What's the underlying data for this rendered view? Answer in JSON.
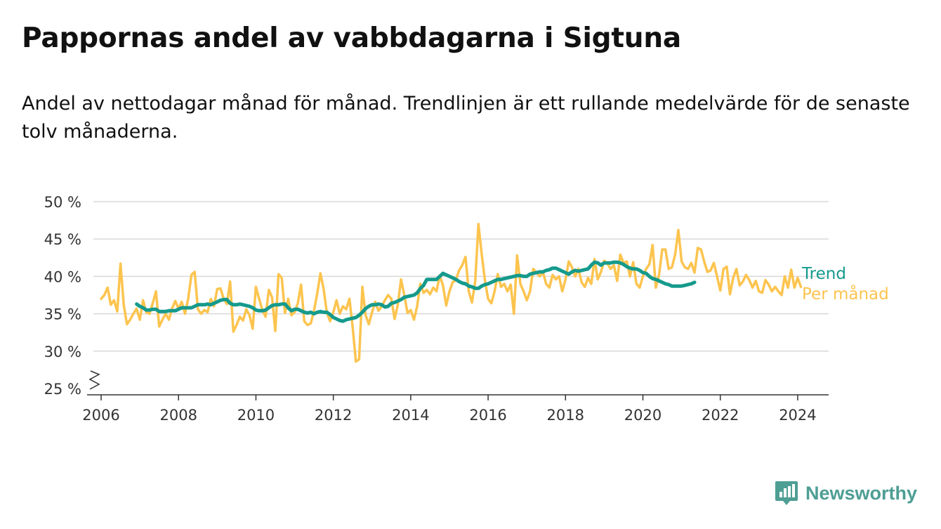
{
  "title": "Pappornas andel av vabbdagarna i Sigtuna",
  "subtitle": "Andel av nettodagar månad för månad. Trendlinjen är ett rullande medelvärde för de senaste tolv månaderna.",
  "brand": {
    "name": "Newsworthy",
    "icon": "newsworthy-logo-icon",
    "color": "#4e9e94"
  },
  "chart_data": {
    "type": "line",
    "title": "Pappornas andel av vabbdagarna i Sigtuna",
    "xlabel": "",
    "ylabel": "",
    "xlim": [
      2005.8,
      2024.8
    ],
    "ylim": [
      25,
      50
    ],
    "y_axis_break": true,
    "grid": "horizontal",
    "x_ticks": [
      2006,
      2008,
      2010,
      2012,
      2014,
      2016,
      2018,
      2020,
      2022,
      2024
    ],
    "x_tick_labels": [
      "2006",
      "2008",
      "2010",
      "2012",
      "2014",
      "2016",
      "2018",
      "2020",
      "2022",
      "2024"
    ],
    "y_ticks": [
      25,
      30,
      35,
      40,
      45,
      50
    ],
    "y_tick_labels": [
      "25 %",
      "30 %",
      "35 %",
      "40 %",
      "45 %",
      "50 %"
    ],
    "legend_placement": "right-end",
    "series": [
      {
        "name": "Per månad",
        "color": "#fcc44f",
        "start": 2006.0,
        "step": 0.0833333,
        "values": [
          37.0,
          37.5,
          38.5,
          36.2,
          36.8,
          35.3,
          41.7,
          36.2,
          33.6,
          34.2,
          35.0,
          35.7,
          34.2,
          36.8,
          35.2,
          35.0,
          36.4,
          38.0,
          33.3,
          34.2,
          35.0,
          34.2,
          35.7,
          36.7,
          35.7,
          36.6,
          35.0,
          37.0,
          40.2,
          40.6,
          35.6,
          35.0,
          35.5,
          35.2,
          37.0,
          36.0,
          38.3,
          38.4,
          37.0,
          36.3,
          39.3,
          32.6,
          33.5,
          34.6,
          34.1,
          35.6,
          34.8,
          33.0,
          38.6,
          37.0,
          35.5,
          34.6,
          38.2,
          37.2,
          32.7,
          40.3,
          39.8,
          35.1,
          37.0,
          34.8,
          35.2,
          36.4,
          38.9,
          34.0,
          33.5,
          33.7,
          35.4,
          37.7,
          40.4,
          38.3,
          35.1,
          34.0,
          35.2,
          36.8,
          35.0,
          36.0,
          35.6,
          37.0,
          33.2,
          28.6,
          28.9,
          38.6,
          34.8,
          33.6,
          35.2,
          36.6,
          35.4,
          36.0,
          36.8,
          37.5,
          37.0,
          34.3,
          36.2,
          39.6,
          37.5,
          35.1,
          35.5,
          34.2,
          36.0,
          39.0,
          37.8,
          38.2,
          37.6,
          38.5,
          38.0,
          40.1,
          38.8,
          36.1,
          38.0,
          39.2,
          39.5,
          40.8,
          41.5,
          42.6,
          38.0,
          36.5,
          39.3,
          47.0,
          43.0,
          39.5,
          37.0,
          36.4,
          38.0,
          40.3,
          38.6,
          39.0,
          38.0,
          38.9,
          35.0,
          42.8,
          39.0,
          38.0,
          36.8,
          38.0,
          41.0,
          40.5,
          40.0,
          40.6,
          39.0,
          38.5,
          40.2,
          39.6,
          40.0,
          38.0,
          39.6,
          42.0,
          41.2,
          40.0,
          41.0,
          39.2,
          38.6,
          39.8,
          39.0,
          42.3,
          39.6,
          40.6,
          42.1,
          41.7,
          41.0,
          41.5,
          39.4,
          42.9,
          41.8,
          42.0,
          40.0,
          41.9,
          39.0,
          38.5,
          40.0,
          41.0,
          41.6,
          44.2,
          38.5,
          40.2,
          43.6,
          43.6,
          41.0,
          41.2,
          42.9,
          46.2,
          42.0,
          41.2,
          41.0,
          41.8,
          40.5,
          43.8,
          43.6,
          42.0,
          40.6,
          40.8,
          41.8,
          40.0,
          38.1,
          41.0,
          41.3,
          37.6,
          39.8,
          41.0,
          38.8,
          39.3,
          40.2,
          39.5,
          38.5,
          39.4,
          38.0,
          37.8,
          39.5,
          38.9,
          38.0,
          38.6,
          38.0,
          37.5,
          40.0,
          38.5,
          40.9,
          38.5,
          39.8,
          38.6
        ]
      },
      {
        "name": "Trend",
        "color": "#159a8c",
        "start": 2006.917,
        "step": 0.0833333,
        "values": [
          36.3,
          36.0,
          35.8,
          35.5,
          35.5,
          35.6,
          35.6,
          35.3,
          35.3,
          35.3,
          35.4,
          35.4,
          35.4,
          35.6,
          35.8,
          35.8,
          35.8,
          35.8,
          36.0,
          36.2,
          36.2,
          36.2,
          36.3,
          36.2,
          36.4,
          36.6,
          36.8,
          36.9,
          36.9,
          36.4,
          36.2,
          36.2,
          36.3,
          36.2,
          36.1,
          36.0,
          35.8,
          35.5,
          35.4,
          35.4,
          35.5,
          35.8,
          36.1,
          36.2,
          36.2,
          36.3,
          36.3,
          35.8,
          35.4,
          35.6,
          35.6,
          35.4,
          35.2,
          35.1,
          35.2,
          35.0,
          35.2,
          35.3,
          35.2,
          35.2,
          34.9,
          34.5,
          34.3,
          34.1,
          34.0,
          34.2,
          34.3,
          34.4,
          34.5,
          34.8,
          35.2,
          35.7,
          36.0,
          36.2,
          36.2,
          36.3,
          36.2,
          35.9,
          36.0,
          36.4,
          36.5,
          36.7,
          36.9,
          37.2,
          37.3,
          37.4,
          37.5,
          37.8,
          38.4,
          38.8,
          39.6,
          39.6,
          39.6,
          39.6,
          40.0,
          40.4,
          40.2,
          40.0,
          39.8,
          39.6,
          39.3,
          39.1,
          39.0,
          38.7,
          38.6,
          38.4,
          38.4,
          38.7,
          38.9,
          39.0,
          39.2,
          39.4,
          39.6,
          39.6,
          39.7,
          39.8,
          39.9,
          40.0,
          40.1,
          40.1,
          40.0,
          40.0,
          40.3,
          40.4,
          40.5,
          40.6,
          40.6,
          40.8,
          40.9,
          41.1,
          41.1,
          40.9,
          40.7,
          40.5,
          40.3,
          40.6,
          40.8,
          40.7,
          40.8,
          40.9,
          41.0,
          41.5,
          41.9,
          41.8,
          41.5,
          41.8,
          41.8,
          41.8,
          41.9,
          41.9,
          41.8,
          41.6,
          41.3,
          41.1,
          41.0,
          41.0,
          40.8,
          40.5,
          40.4,
          40.0,
          39.7,
          39.6,
          39.4,
          39.2,
          39.0,
          38.9,
          38.7,
          38.7,
          38.7,
          38.7,
          38.8,
          38.9,
          39.0,
          39.2
        ]
      }
    ]
  }
}
